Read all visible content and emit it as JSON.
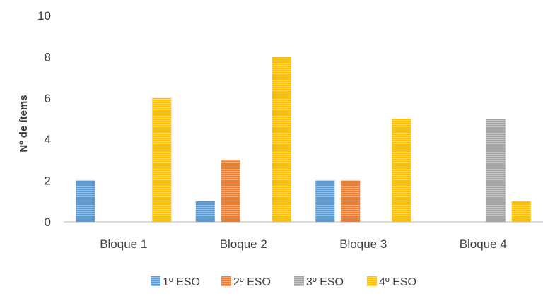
{
  "chart_data": {
    "type": "bar",
    "title": "",
    "xlabel": "",
    "ylabel": "Nº de ítems",
    "ylim": [
      0,
      10
    ],
    "yticks": [
      0,
      2,
      4,
      6,
      8,
      10
    ],
    "categories": [
      "Bloque 1",
      "Bloque 2",
      "Bloque 3",
      "Bloque 4"
    ],
    "series": [
      {
        "name": "1º ESO",
        "color": "#5B9BD5",
        "values": [
          2,
          1,
          2,
          0
        ]
      },
      {
        "name": "2º ESO",
        "color": "#ED7D31",
        "values": [
          0,
          3,
          2,
          0
        ]
      },
      {
        "name": "3º ESO",
        "color": "#A5A5A5",
        "values": [
          0,
          0,
          0,
          5
        ]
      },
      {
        "name": "4º ESO",
        "color": "#FFC000",
        "values": [
          6,
          8,
          5,
          1
        ]
      }
    ],
    "grid": false,
    "legend_position": "bottom",
    "bar_pattern": "horizontal-lines"
  }
}
